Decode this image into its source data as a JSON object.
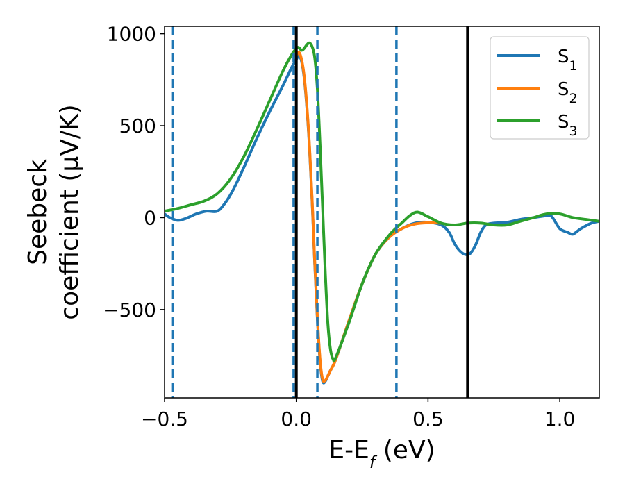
{
  "chart_data": {
    "type": "line",
    "xlabel": "E-E",
    "xlabel_sub": "f",
    "xlabel_unit": " (eV)",
    "ylabel_line1": "Seebeck",
    "ylabel_line2": "coefficient  (μV/K)",
    "xlim": [
      -0.5,
      1.15
    ],
    "ylim": [
      -980,
      1040
    ],
    "xticks": [
      -0.5,
      0.0,
      0.5,
      1.0
    ],
    "xtick_labels": [
      "−0.5",
      "0.0",
      "0.5",
      "1.0"
    ],
    "yticks": [
      -500,
      0,
      500,
      1000
    ],
    "ytick_labels": [
      "−500",
      "0",
      "500",
      "1000"
    ],
    "grid": false,
    "legend_position": "top-right",
    "series": [
      {
        "name": "S",
        "subscript": "1",
        "color": "#1f77b4",
        "x": [
          -0.5,
          -0.48,
          -0.45,
          -0.42,
          -0.38,
          -0.34,
          -0.3,
          -0.27,
          -0.24,
          -0.2,
          -0.15,
          -0.1,
          -0.05,
          -0.02,
          0.0,
          0.01,
          0.02,
          0.03,
          0.04,
          0.05,
          0.06,
          0.07,
          0.08,
          0.09,
          0.1,
          0.11,
          0.12,
          0.13,
          0.15,
          0.2,
          0.25,
          0.3,
          0.35,
          0.4,
          0.45,
          0.5,
          0.55,
          0.58,
          0.6,
          0.62,
          0.64,
          0.66,
          0.68,
          0.7,
          0.72,
          0.75,
          0.8,
          0.85,
          0.9,
          0.95,
          0.97,
          1.0,
          1.03,
          1.05,
          1.08,
          1.12,
          1.15
        ],
        "y": [
          20,
          0,
          -15,
          -5,
          20,
          35,
          35,
          80,
          150,
          270,
          430,
          580,
          720,
          810,
          860,
          880,
          850,
          760,
          600,
          380,
          90,
          -250,
          -550,
          -780,
          -890,
          -890,
          -860,
          -830,
          -770,
          -560,
          -360,
          -200,
          -110,
          -60,
          -30,
          -25,
          -40,
          -80,
          -140,
          -180,
          -200,
          -195,
          -150,
          -80,
          -40,
          -30,
          -25,
          -10,
          0,
          10,
          5,
          -60,
          -80,
          -90,
          -60,
          -30,
          -20
        ]
      },
      {
        "name": "S",
        "subscript": "2",
        "color": "#ff7f0e",
        "x": [
          0.0,
          0.01,
          0.02,
          0.03,
          0.04,
          0.05,
          0.06,
          0.07,
          0.08,
          0.09,
          0.1,
          0.11,
          0.12,
          0.13,
          0.15,
          0.2,
          0.25,
          0.3,
          0.35,
          0.4,
          0.45,
          0.5,
          0.55
        ],
        "y": [
          880,
          900,
          860,
          770,
          610,
          390,
          100,
          -240,
          -540,
          -770,
          -880,
          -885,
          -860,
          -830,
          -770,
          -560,
          -360,
          -200,
          -110,
          -60,
          -35,
          -28,
          -30
        ]
      },
      {
        "name": "S",
        "subscript": "3",
        "color": "#2ca02c",
        "x": [
          -0.5,
          -0.45,
          -0.4,
          -0.35,
          -0.3,
          -0.25,
          -0.2,
          -0.15,
          -0.1,
          -0.05,
          -0.02,
          0.0,
          0.01,
          0.02,
          0.03,
          0.04,
          0.05,
          0.06,
          0.07,
          0.08,
          0.09,
          0.1,
          0.11,
          0.12,
          0.13,
          0.14,
          0.15,
          0.2,
          0.25,
          0.3,
          0.35,
          0.38,
          0.4,
          0.43,
          0.46,
          0.5,
          0.55,
          0.6,
          0.65,
          0.7,
          0.75,
          0.8,
          0.85,
          0.9,
          0.95,
          1.0,
          1.05,
          1.1,
          1.15
        ],
        "y": [
          35,
          50,
          70,
          90,
          130,
          210,
          330,
          480,
          640,
          800,
          880,
          920,
          925,
          910,
          920,
          940,
          950,
          930,
          870,
          700,
          400,
          50,
          -300,
          -580,
          -720,
          -770,
          -760,
          -570,
          -360,
          -200,
          -100,
          -55,
          -30,
          10,
          30,
          5,
          -30,
          -40,
          -30,
          -30,
          -40,
          -40,
          -20,
          0,
          20,
          20,
          0,
          -10,
          -20
        ]
      }
    ],
    "vlines": [
      {
        "x": -0.47,
        "style": "dashed",
        "color": "#1f77b4"
      },
      {
        "x": -0.01,
        "style": "dashed",
        "color": "#1f77b4"
      },
      {
        "x": 0.08,
        "style": "dashed",
        "color": "#1f77b4"
      },
      {
        "x": 0.38,
        "style": "dashed",
        "color": "#1f77b4"
      },
      {
        "x": 0.0,
        "style": "solid",
        "color": "#000000"
      },
      {
        "x": 0.65,
        "style": "solid",
        "color": "#000000"
      }
    ]
  }
}
